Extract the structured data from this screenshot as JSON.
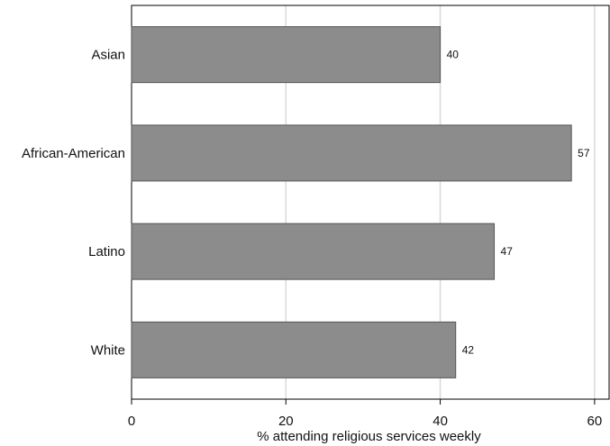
{
  "chart_data": {
    "type": "bar",
    "orientation": "horizontal",
    "categories": [
      "Asian",
      "African-American",
      "Latino",
      "White"
    ],
    "values": [
      40,
      57,
      47,
      42
    ],
    "data_labels": [
      "40",
      "57",
      "47",
      "42"
    ],
    "xlabel": "% attending religious services weekly",
    "ylabel": "",
    "xlim": [
      0,
      62
    ],
    "xticks": [
      0,
      20,
      40,
      60
    ],
    "xtick_labels": [
      "0",
      "20",
      "40",
      "60"
    ],
    "grid": "vertical",
    "colors": {
      "bar_fill": "#8c8c8c",
      "bar_stroke": "#555555",
      "grid": "#d9d9d9",
      "axis": "#000000"
    }
  }
}
